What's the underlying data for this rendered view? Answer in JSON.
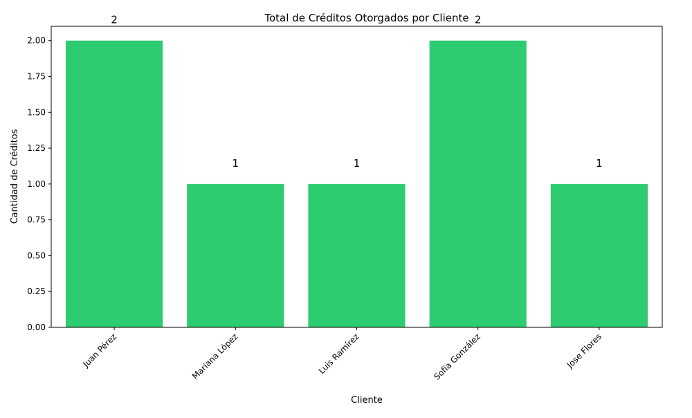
{
  "chart_data": {
    "type": "bar",
    "title": "Total de Créditos Otorgados por Cliente",
    "xlabel": "Cliente",
    "ylabel": "Cantidad de Créditos",
    "categories": [
      "Juan Pérez",
      "Mariana López",
      "Luis Ramírez",
      "Sofía González",
      "Jose Flores"
    ],
    "values": [
      2,
      1,
      1,
      2,
      1
    ],
    "data_labels": [
      "2",
      "1",
      "1",
      "2",
      "1"
    ],
    "ylim": [
      0,
      2.1
    ],
    "yticks": [
      0.0,
      0.25,
      0.5,
      0.75,
      1.0,
      1.25,
      1.5,
      1.75,
      2.0
    ],
    "ytick_labels": [
      "0.00",
      "0.25",
      "0.50",
      "0.75",
      "1.00",
      "1.25",
      "1.50",
      "1.75",
      "2.00"
    ],
    "grid": false,
    "bar_color": "#2ecc71"
  }
}
